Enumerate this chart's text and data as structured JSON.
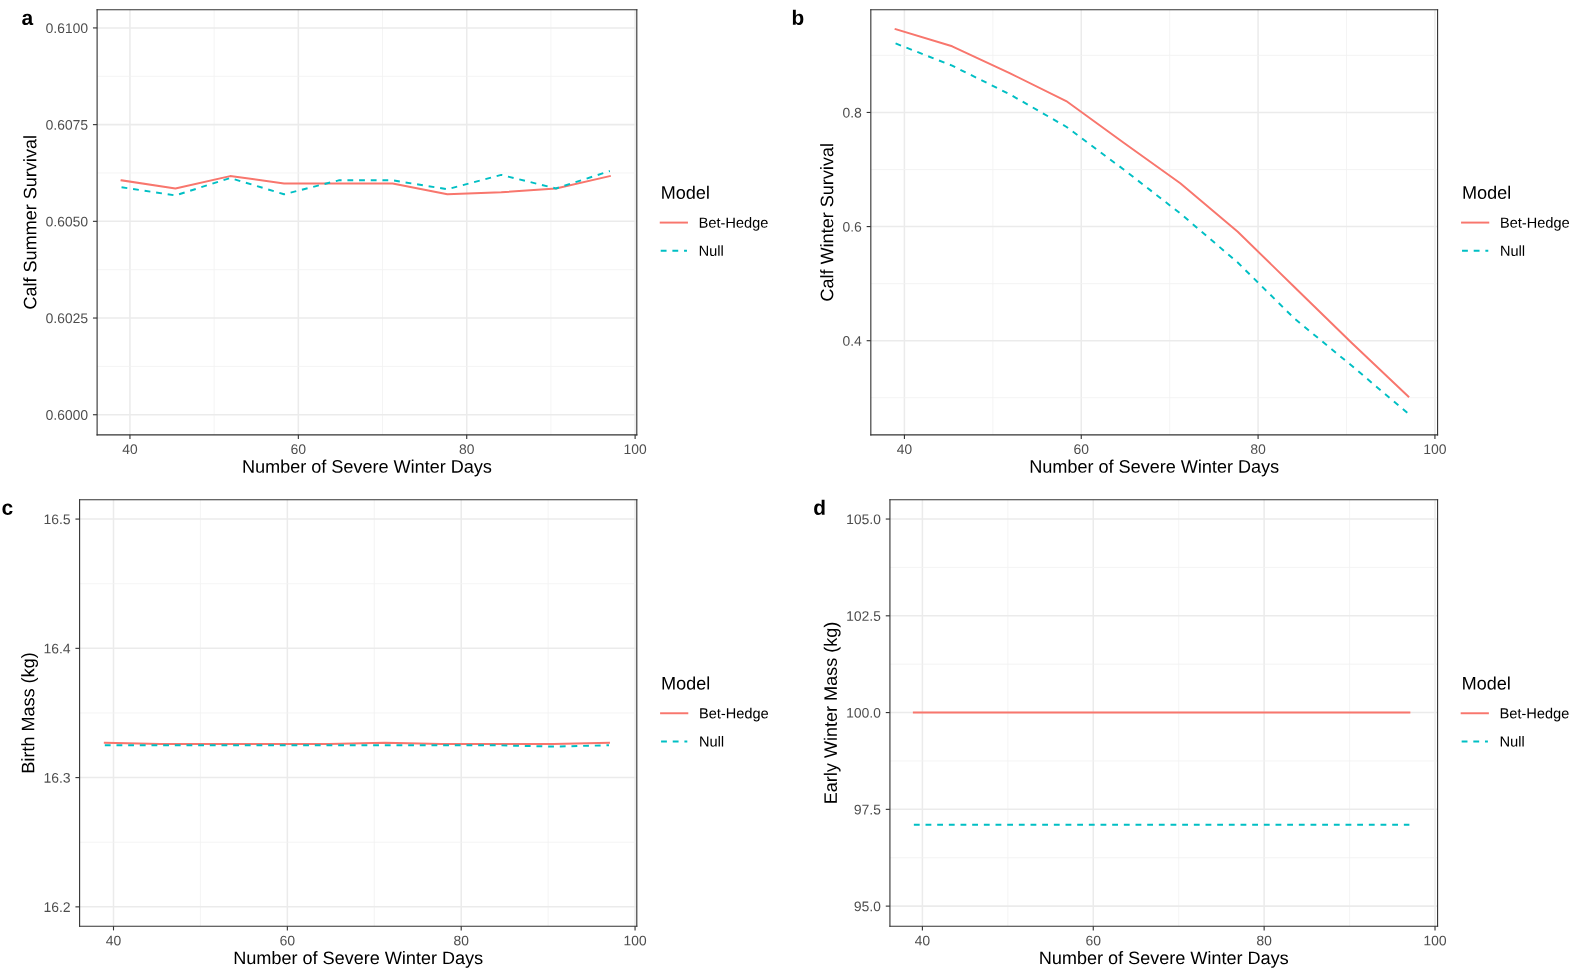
{
  "chart_data": [
    {
      "type": "line",
      "title": "a",
      "xlabel": "Number of Severe Winter Days",
      "ylabel": "Calf Summer Survival",
      "legend_title": "Model",
      "legend": "right",
      "grid": true,
      "x": [
        39,
        45.4,
        51.9,
        58.3,
        64.8,
        71.2,
        77.7,
        84.1,
        90.6,
        97
      ],
      "xlim": [
        36.1,
        100.2
      ],
      "xticks": [
        40,
        60,
        80,
        100
      ],
      "ylim": [
        0.59948,
        0.61047
      ],
      "yticks": [
        {
          "value": 0.6,
          "label": "0.6000"
        },
        {
          "value": 0.6025,
          "label": "0.6025"
        },
        {
          "value": 0.605,
          "label": "0.6050"
        },
        {
          "value": 0.6075,
          "label": "0.6075"
        },
        {
          "value": 0.61,
          "label": "0.6100"
        }
      ],
      "series": [
        {
          "name": "Bet-Hedge",
          "color": "#f8766d",
          "line_style": "solid",
          "values": [
            0.60606,
            0.60585,
            0.60617,
            0.60598,
            0.60598,
            0.60598,
            0.6057,
            0.60575,
            0.60585,
            0.60617
          ]
        },
        {
          "name": "Null",
          "color": "#00bfc4",
          "line_style": "dashed",
          "values": [
            0.60588,
            0.60567,
            0.60612,
            0.6057,
            0.60606,
            0.60606,
            0.60583,
            0.6062,
            0.60585,
            0.6063
          ]
        }
      ]
    },
    {
      "type": "line",
      "title": "b",
      "xlabel": "Number of Severe Winter Days",
      "ylabel": "Calf Winter Survival",
      "legend_title": "Model",
      "legend": "right",
      "grid": true,
      "x": [
        39,
        45.4,
        51.9,
        58.3,
        64.8,
        71.2,
        77.7,
        84.1,
        90.6,
        97
      ],
      "xlim": [
        36.2,
        100.3
      ],
      "xticks": [
        40,
        60,
        80,
        100
      ],
      "ylim": [
        0.235,
        0.98
      ],
      "yticks": [
        0.4,
        0.6,
        0.8
      ],
      "series": [
        {
          "name": "Bet-Hedge",
          "color": "#f8766d",
          "line_style": "solid",
          "values": [
            0.946,
            0.916,
            0.869,
            0.82,
            0.747,
            0.676,
            0.591,
            0.494,
            0.396,
            0.302
          ]
        },
        {
          "name": "Null",
          "color": "#00bfc4",
          "line_style": "dashed",
          "values": [
            0.921,
            0.882,
            0.832,
            0.775,
            0.7,
            0.623,
            0.537,
            0.439,
            0.356,
            0.272
          ]
        }
      ]
    },
    {
      "type": "line",
      "title": "c",
      "xlabel": "Number of Severe Winter Days",
      "ylabel": "Birth Mass (kg)",
      "legend_title": "Model",
      "legend": "right",
      "grid": true,
      "x": [
        39,
        45.4,
        51.9,
        58.3,
        64.8,
        71.2,
        77.7,
        84.1,
        90.6,
        97
      ],
      "xlim": [
        36.1,
        100.2
      ],
      "xticks": [
        40,
        60,
        80,
        100
      ],
      "ylim": [
        16.185,
        16.515
      ],
      "yticks": [
        16.2,
        16.3,
        16.4,
        16.5
      ],
      "series": [
        {
          "name": "Bet-Hedge",
          "color": "#f8766d",
          "line_style": "solid",
          "values": [
            16.327,
            16.326,
            16.326,
            16.326,
            16.326,
            16.327,
            16.326,
            16.326,
            16.326,
            16.327
          ]
        },
        {
          "name": "Null",
          "color": "#00bfc4",
          "line_style": "dashed",
          "values": [
            16.325,
            16.325,
            16.325,
            16.325,
            16.325,
            16.325,
            16.325,
            16.325,
            16.324,
            16.325
          ]
        }
      ]
    },
    {
      "type": "line",
      "title": "d",
      "xlabel": "Number of Severe Winter Days",
      "ylabel": "Early Winter Mass (kg)",
      "legend_title": "Model",
      "legend": "right",
      "grid": true,
      "x": [
        39,
        45.4,
        51.9,
        58.3,
        64.8,
        71.2,
        77.7,
        84.1,
        90.6,
        97
      ],
      "xlim": [
        36.2,
        100.3
      ],
      "xticks": [
        40,
        60,
        80,
        100
      ],
      "ylim": [
        94.48,
        105.5
      ],
      "yticks": [
        {
          "value": 95,
          "label": "95.0"
        },
        {
          "value": 97.5,
          "label": "97.5"
        },
        {
          "value": 100,
          "label": "100.0"
        },
        {
          "value": 102.5,
          "label": "102.5"
        },
        {
          "value": 105,
          "label": "105.0"
        }
      ],
      "series": [
        {
          "name": "Bet-Hedge",
          "color": "#f8766d",
          "line_style": "solid",
          "values": [
            100.0,
            100.0,
            100.0,
            100.0,
            100.0,
            100.0,
            100.0,
            100.0,
            100.0,
            100.0
          ]
        },
        {
          "name": "Null",
          "color": "#00bfc4",
          "line_style": "dashed",
          "values": [
            97.1,
            97.1,
            97.1,
            97.1,
            97.1,
            97.1,
            97.1,
            97.1,
            97.1,
            97.1
          ]
        }
      ]
    }
  ]
}
